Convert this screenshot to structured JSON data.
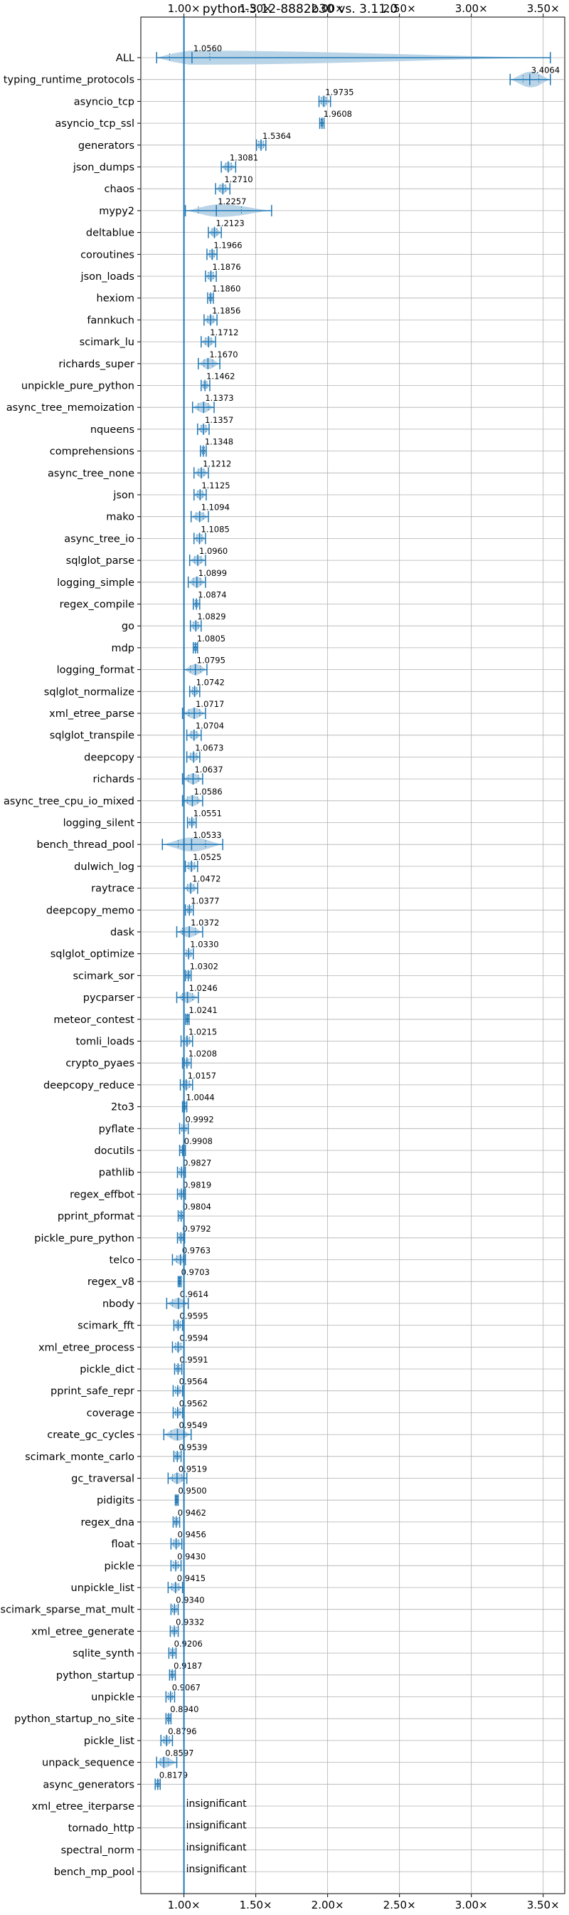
{
  "chart_data": {
    "type": "violin",
    "title": "python-3.12-8882b30 vs. 3.11.0",
    "xlim": [
      0.7,
      3.65
    ],
    "x_ticks": [
      1.0,
      1.5,
      2.0,
      2.5,
      3.0,
      3.5
    ],
    "x_tick_labels": [
      "1.00×",
      "1.50×",
      "2.00×",
      "2.50×",
      "3.00×",
      "3.50×"
    ],
    "tick_position": "top",
    "grid": true,
    "reference_line": 1.0,
    "colors": {
      "body": "#aecde3",
      "line": "#1f77b4",
      "grid": "#b0b0b0"
    },
    "insignificant_text": "insignificant",
    "benchmarks": [
      {
        "name": "ALL",
        "value": 1.056,
        "label": "1.0560",
        "min": 0.81,
        "max": 3.55,
        "q1": 0.9,
        "q3": 1.18,
        "width": 0.9
      },
      {
        "name": "typing_runtime_protocols",
        "value": 3.4064,
        "label": "3.4064",
        "min": 3.27,
        "max": 3.55,
        "q1": 3.36,
        "q3": 3.47,
        "width": 1.0
      },
      {
        "name": "asyncio_tcp",
        "value": 1.9735,
        "label": "1.9735",
        "min": 1.94,
        "max": 2.02,
        "q1": 1.955,
        "q3": 1.99,
        "width": 0.7
      },
      {
        "name": "asyncio_tcp_ssl",
        "value": 1.9608,
        "label": "1.9608",
        "min": 1.945,
        "max": 1.975,
        "q1": 1.955,
        "q3": 1.965,
        "width": 0.6
      },
      {
        "name": "generators",
        "value": 1.5364,
        "label": "1.5364",
        "min": 1.505,
        "max": 1.57,
        "q1": 1.52,
        "q3": 1.555,
        "width": 0.6
      },
      {
        "name": "json_dumps",
        "value": 1.3081,
        "label": "1.3081",
        "min": 1.26,
        "max": 1.36,
        "q1": 1.29,
        "q3": 1.33,
        "width": 0.6
      },
      {
        "name": "chaos",
        "value": 1.271,
        "label": "1.2710",
        "min": 1.22,
        "max": 1.32,
        "q1": 1.25,
        "q3": 1.29,
        "width": 0.6
      },
      {
        "name": "mypy2",
        "value": 1.2257,
        "label": "1.2257",
        "min": 1.01,
        "max": 1.61,
        "q1": 1.1,
        "q3": 1.4,
        "width": 0.8
      },
      {
        "name": "deltablue",
        "value": 1.2123,
        "label": "1.2123",
        "min": 1.17,
        "max": 1.26,
        "q1": 1.195,
        "q3": 1.23,
        "width": 0.6
      },
      {
        "name": "coroutines",
        "value": 1.1966,
        "label": "1.1966",
        "min": 1.16,
        "max": 1.23,
        "q1": 1.18,
        "q3": 1.21,
        "width": 0.6
      },
      {
        "name": "json_loads",
        "value": 1.1876,
        "label": "1.1876",
        "min": 1.15,
        "max": 1.225,
        "q1": 1.17,
        "q3": 1.205,
        "width": 0.6
      },
      {
        "name": "hexiom",
        "value": 1.186,
        "label": "1.1860",
        "min": 1.165,
        "max": 1.205,
        "q1": 1.178,
        "q3": 1.195,
        "width": 0.5
      },
      {
        "name": "fannkuch",
        "value": 1.1856,
        "label": "1.1856",
        "min": 1.14,
        "max": 1.23,
        "q1": 1.165,
        "q3": 1.205,
        "width": 0.6
      },
      {
        "name": "scimark_lu",
        "value": 1.1712,
        "label": "1.1712",
        "min": 1.12,
        "max": 1.22,
        "q1": 1.15,
        "q3": 1.19,
        "width": 0.6
      },
      {
        "name": "richards_super",
        "value": 1.167,
        "label": "1.1670",
        "min": 1.1,
        "max": 1.25,
        "q1": 1.14,
        "q3": 1.2,
        "width": 0.7
      },
      {
        "name": "unpickle_pure_python",
        "value": 1.1462,
        "label": "1.1462",
        "min": 1.12,
        "max": 1.18,
        "q1": 1.135,
        "q3": 1.16,
        "width": 0.5
      },
      {
        "name": "async_tree_memoization",
        "value": 1.1373,
        "label": "1.1373",
        "min": 1.06,
        "max": 1.21,
        "q1": 1.1,
        "q3": 1.17,
        "width": 0.7
      },
      {
        "name": "nqueens",
        "value": 1.1357,
        "label": "1.1357",
        "min": 1.095,
        "max": 1.175,
        "q1": 1.12,
        "q3": 1.155,
        "width": 0.6
      },
      {
        "name": "comprehensions",
        "value": 1.1348,
        "label": "1.1348",
        "min": 1.115,
        "max": 1.155,
        "q1": 1.127,
        "q3": 1.143,
        "width": 0.5
      },
      {
        "name": "async_tree_none",
        "value": 1.1212,
        "label": "1.1212",
        "min": 1.07,
        "max": 1.17,
        "q1": 1.1,
        "q3": 1.14,
        "width": 0.6
      },
      {
        "name": "json",
        "value": 1.1125,
        "label": "1.1125",
        "min": 1.07,
        "max": 1.155,
        "q1": 1.095,
        "q3": 1.13,
        "width": 0.6
      },
      {
        "name": "mako",
        "value": 1.1094,
        "label": "1.1094",
        "min": 1.05,
        "max": 1.17,
        "q1": 1.085,
        "q3": 1.135,
        "width": 0.6
      },
      {
        "name": "async_tree_io",
        "value": 1.1085,
        "label": "1.1085",
        "min": 1.07,
        "max": 1.15,
        "q1": 1.09,
        "q3": 1.125,
        "width": 0.6
      },
      {
        "name": "sqlglot_parse",
        "value": 1.096,
        "label": "1.0960",
        "min": 1.04,
        "max": 1.15,
        "q1": 1.075,
        "q3": 1.12,
        "width": 0.6
      },
      {
        "name": "logging_simple",
        "value": 1.0899,
        "label": "1.0899",
        "min": 1.03,
        "max": 1.15,
        "q1": 1.065,
        "q3": 1.115,
        "width": 0.7
      },
      {
        "name": "regex_compile",
        "value": 1.0874,
        "label": "1.0874",
        "min": 1.065,
        "max": 1.11,
        "q1": 1.078,
        "q3": 1.097,
        "width": 0.5
      },
      {
        "name": "go",
        "value": 1.0829,
        "label": "1.0829",
        "min": 1.045,
        "max": 1.12,
        "q1": 1.065,
        "q3": 1.1,
        "width": 0.6
      },
      {
        "name": "mdp",
        "value": 1.0805,
        "label": "1.0805",
        "min": 1.065,
        "max": 1.095,
        "q1": 1.073,
        "q3": 1.088,
        "width": 0.5
      },
      {
        "name": "logging_format",
        "value": 1.0795,
        "label": "1.0795",
        "min": 1.0,
        "max": 1.16,
        "q1": 1.045,
        "q3": 1.115,
        "width": 0.7
      },
      {
        "name": "sqlglot_normalize",
        "value": 1.0742,
        "label": "1.0742",
        "min": 1.04,
        "max": 1.11,
        "q1": 1.06,
        "q3": 1.09,
        "width": 0.6
      },
      {
        "name": "xml_etree_parse",
        "value": 1.0717,
        "label": "1.0717",
        "min": 0.99,
        "max": 1.15,
        "q1": 1.035,
        "q3": 1.11,
        "width": 0.7
      },
      {
        "name": "sqlglot_transpile",
        "value": 1.0704,
        "label": "1.0704",
        "min": 1.02,
        "max": 1.12,
        "q1": 1.05,
        "q3": 1.09,
        "width": 0.6
      },
      {
        "name": "deepcopy",
        "value": 1.0673,
        "label": "1.0673",
        "min": 1.02,
        "max": 1.11,
        "q1": 1.045,
        "q3": 1.09,
        "width": 0.6
      },
      {
        "name": "richards",
        "value": 1.0637,
        "label": "1.0637",
        "min": 0.99,
        "max": 1.13,
        "q1": 1.03,
        "q3": 1.1,
        "width": 0.7
      },
      {
        "name": "async_tree_cpu_io_mixed",
        "value": 1.0586,
        "label": "1.0586",
        "min": 0.99,
        "max": 1.13,
        "q1": 1.025,
        "q3": 1.095,
        "width": 0.7
      },
      {
        "name": "logging_silent",
        "value": 1.0551,
        "label": "1.0551",
        "min": 1.025,
        "max": 1.085,
        "q1": 1.04,
        "q3": 1.07,
        "width": 0.5
      },
      {
        "name": "bench_thread_pool",
        "value": 1.0533,
        "label": "1.0533",
        "min": 0.85,
        "max": 1.27,
        "q1": 0.96,
        "q3": 1.15,
        "width": 0.9
      },
      {
        "name": "dulwich_log",
        "value": 1.0525,
        "label": "1.0525",
        "min": 1.01,
        "max": 1.095,
        "q1": 1.03,
        "q3": 1.075,
        "width": 0.6
      },
      {
        "name": "raytrace",
        "value": 1.0472,
        "label": "1.0472",
        "min": 1.0,
        "max": 1.095,
        "q1": 1.025,
        "q3": 1.07,
        "width": 0.6
      },
      {
        "name": "deepcopy_memo",
        "value": 1.0377,
        "label": "1.0377",
        "min": 1.01,
        "max": 1.065,
        "q1": 1.025,
        "q3": 1.05,
        "width": 0.5
      },
      {
        "name": "dask",
        "value": 1.0372,
        "label": "1.0372",
        "min": 0.95,
        "max": 1.13,
        "q1": 0.99,
        "q3": 1.08,
        "width": 0.7
      },
      {
        "name": "sqlglot_optimize",
        "value": 1.033,
        "label": "1.0330",
        "min": 1.0,
        "max": 1.065,
        "q1": 1.015,
        "q3": 1.05,
        "width": 0.5
      },
      {
        "name": "scimark_sor",
        "value": 1.0302,
        "label": "1.0302",
        "min": 1.01,
        "max": 1.05,
        "q1": 1.02,
        "q3": 1.04,
        "width": 0.5
      },
      {
        "name": "pycparser",
        "value": 1.0246,
        "label": "1.0246",
        "min": 0.95,
        "max": 1.1,
        "q1": 0.99,
        "q3": 1.06,
        "width": 0.7
      },
      {
        "name": "meteor_contest",
        "value": 1.0241,
        "label": "1.0241",
        "min": 1.012,
        "max": 1.036,
        "q1": 1.018,
        "q3": 1.03,
        "width": 0.4
      },
      {
        "name": "tomli_loads",
        "value": 1.0215,
        "label": "1.0215",
        "min": 0.98,
        "max": 1.06,
        "q1": 1.0,
        "q3": 1.04,
        "width": 0.6
      },
      {
        "name": "crypto_pyaes",
        "value": 1.0208,
        "label": "1.0208",
        "min": 0.99,
        "max": 1.05,
        "q1": 1.005,
        "q3": 1.035,
        "width": 0.5
      },
      {
        "name": "deepcopy_reduce",
        "value": 1.0157,
        "label": "1.0157",
        "min": 0.975,
        "max": 1.06,
        "q1": 0.995,
        "q3": 1.04,
        "width": 0.6
      },
      {
        "name": "2to3",
        "value": 1.0044,
        "label": "1.0044",
        "min": 0.99,
        "max": 1.02,
        "q1": 0.997,
        "q3": 1.012,
        "width": 0.4
      },
      {
        "name": "pyflate",
        "value": 0.9992,
        "label": "0.9992",
        "min": 0.97,
        "max": 1.03,
        "q1": 0.985,
        "q3": 1.015,
        "width": 0.5
      },
      {
        "name": "docutils",
        "value": 0.9908,
        "label": "0.9908",
        "min": 0.97,
        "max": 1.01,
        "q1": 0.98,
        "q3": 1.0,
        "width": 0.5
      },
      {
        "name": "pathlib",
        "value": 0.9827,
        "label": "0.9827",
        "min": 0.955,
        "max": 1.01,
        "q1": 0.968,
        "q3": 0.997,
        "width": 0.5
      },
      {
        "name": "regex_effbot",
        "value": 0.9819,
        "label": "0.9819",
        "min": 0.955,
        "max": 1.01,
        "q1": 0.968,
        "q3": 0.995,
        "width": 0.5
      },
      {
        "name": "pprint_pformat",
        "value": 0.9804,
        "label": "0.9804",
        "min": 0.96,
        "max": 1.0,
        "q1": 0.97,
        "q3": 0.99,
        "width": 0.5
      },
      {
        "name": "pickle_pure_python",
        "value": 0.9792,
        "label": "0.9792",
        "min": 0.955,
        "max": 1.005,
        "q1": 0.967,
        "q3": 0.992,
        "width": 0.5
      },
      {
        "name": "telco",
        "value": 0.9763,
        "label": "0.9763",
        "min": 0.92,
        "max": 1.01,
        "q1": 0.95,
        "q3": 0.995,
        "width": 0.6
      },
      {
        "name": "regex_v8",
        "value": 0.9703,
        "label": "0.9703",
        "min": 0.96,
        "max": 0.98,
        "q1": 0.965,
        "q3": 0.976,
        "width": 0.4
      },
      {
        "name": "nbody",
        "value": 0.9614,
        "label": "0.9614",
        "min": 0.88,
        "max": 1.03,
        "q1": 0.92,
        "q3": 1.0,
        "width": 0.7
      },
      {
        "name": "scimark_fft",
        "value": 0.9595,
        "label": "0.9595",
        "min": 0.93,
        "max": 0.99,
        "q1": 0.945,
        "q3": 0.975,
        "width": 0.5
      },
      {
        "name": "xml_etree_process",
        "value": 0.9594,
        "label": "0.9594",
        "min": 0.92,
        "max": 1.0,
        "q1": 0.94,
        "q3": 0.98,
        "width": 0.6
      },
      {
        "name": "pickle_dict",
        "value": 0.9591,
        "label": "0.9591",
        "min": 0.935,
        "max": 0.985,
        "q1": 0.947,
        "q3": 0.972,
        "width": 0.5
      },
      {
        "name": "pprint_safe_repr",
        "value": 0.9564,
        "label": "0.9564",
        "min": 0.925,
        "max": 0.99,
        "q1": 0.94,
        "q3": 0.973,
        "width": 0.5
      },
      {
        "name": "coverage",
        "value": 0.9562,
        "label": "0.9562",
        "min": 0.925,
        "max": 0.99,
        "q1": 0.94,
        "q3": 0.973,
        "width": 0.5
      },
      {
        "name": "create_gc_cycles",
        "value": 0.9549,
        "label": "0.9549",
        "min": 0.86,
        "max": 1.05,
        "q1": 0.91,
        "q3": 1.0,
        "width": 0.8
      },
      {
        "name": "scimark_monte_carlo",
        "value": 0.9539,
        "label": "0.9539",
        "min": 0.93,
        "max": 0.98,
        "q1": 0.942,
        "q3": 0.966,
        "width": 0.5
      },
      {
        "name": "gc_traversal",
        "value": 0.9519,
        "label": "0.9519",
        "min": 0.89,
        "max": 1.02,
        "q1": 0.92,
        "q3": 0.985,
        "width": 0.7
      },
      {
        "name": "pidigits",
        "value": 0.95,
        "label": "0.9500",
        "min": 0.94,
        "max": 0.96,
        "q1": 0.945,
        "q3": 0.955,
        "width": 0.4
      },
      {
        "name": "regex_dna",
        "value": 0.9462,
        "label": "0.9462",
        "min": 0.925,
        "max": 0.97,
        "q1": 0.935,
        "q3": 0.957,
        "width": 0.5
      },
      {
        "name": "float",
        "value": 0.9456,
        "label": "0.9456",
        "min": 0.91,
        "max": 0.985,
        "q1": 0.928,
        "q3": 0.965,
        "width": 0.6
      },
      {
        "name": "pickle",
        "value": 0.943,
        "label": "0.9430",
        "min": 0.91,
        "max": 0.98,
        "q1": 0.925,
        "q3": 0.96,
        "width": 0.5
      },
      {
        "name": "unpickle_list",
        "value": 0.9415,
        "label": "0.9415",
        "min": 0.89,
        "max": 0.99,
        "q1": 0.915,
        "q3": 0.965,
        "width": 0.6
      },
      {
        "name": "scimark_sparse_mat_mult",
        "value": 0.934,
        "label": "0.9340",
        "min": 0.91,
        "max": 0.96,
        "q1": 0.92,
        "q3": 0.947,
        "width": 0.5
      },
      {
        "name": "xml_etree_generate",
        "value": 0.9332,
        "label": "0.9332",
        "min": 0.905,
        "max": 0.96,
        "q1": 0.918,
        "q3": 0.947,
        "width": 0.5
      },
      {
        "name": "sqlite_synth",
        "value": 0.9206,
        "label": "0.9206",
        "min": 0.895,
        "max": 0.945,
        "q1": 0.908,
        "q3": 0.933,
        "width": 0.5
      },
      {
        "name": "python_startup",
        "value": 0.9187,
        "label": "0.9187",
        "min": 0.9,
        "max": 0.94,
        "q1": 0.91,
        "q3": 0.93,
        "width": 0.5
      },
      {
        "name": "unpickle",
        "value": 0.9067,
        "label": "0.9067",
        "min": 0.875,
        "max": 0.935,
        "q1": 0.89,
        "q3": 0.92,
        "width": 0.5
      },
      {
        "name": "python_startup_no_site",
        "value": 0.894,
        "label": "0.8940",
        "min": 0.875,
        "max": 0.91,
        "q1": 0.885,
        "q3": 0.903,
        "width": 0.5
      },
      {
        "name": "pickle_list",
        "value": 0.8796,
        "label": "0.8796",
        "min": 0.84,
        "max": 0.92,
        "q1": 0.86,
        "q3": 0.9,
        "width": 0.6
      },
      {
        "name": "unpack_sequence",
        "value": 0.8597,
        "label": "0.8597",
        "min": 0.81,
        "max": 0.95,
        "q1": 0.835,
        "q3": 0.89,
        "width": 0.7
      },
      {
        "name": "async_generators",
        "value": 0.8179,
        "label": "0.8179",
        "min": 0.8,
        "max": 0.835,
        "q1": 0.81,
        "q3": 0.826,
        "width": 0.5
      },
      {
        "name": "xml_etree_iterparse",
        "insignificant": true
      },
      {
        "name": "tornado_http",
        "insignificant": true
      },
      {
        "name": "spectral_norm",
        "insignificant": true
      },
      {
        "name": "bench_mp_pool",
        "insignificant": true
      }
    ]
  }
}
